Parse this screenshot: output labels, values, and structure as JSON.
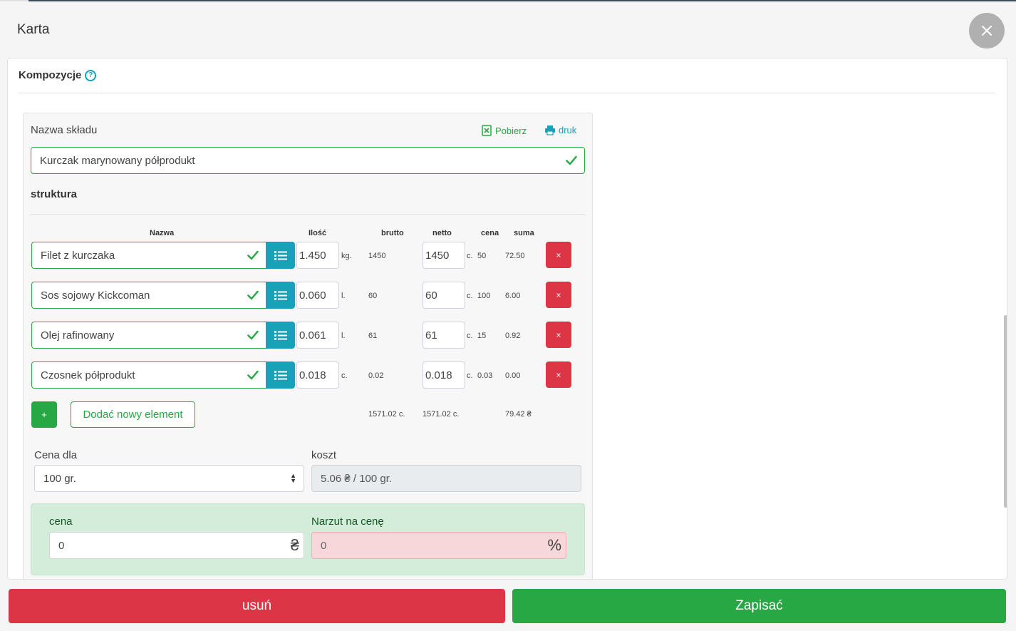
{
  "modal": {
    "title": "Karta",
    "close_icon": "close-icon"
  },
  "section": {
    "title": "Kompozycje",
    "help_icon": "?"
  },
  "recipe": {
    "name_label": "Nazwa składu",
    "name_value": "Kurczak marynowany półprodukt",
    "download_label": "Pobierz",
    "print_label": "druk"
  },
  "structure": {
    "title": "struktura",
    "columns": {
      "name": "Nazwa",
      "qty": "Ilość",
      "gross": "brutto",
      "net": "netto",
      "price": "cena",
      "sum": "suma"
    },
    "rows": [
      {
        "name": "Filet z kurczaka",
        "qty": "1.450",
        "qty_unit": "kg.",
        "gross": "1450",
        "net": "1450",
        "net_unit": "c.",
        "price": "50",
        "sum": "72.50",
        "delete": "×"
      },
      {
        "name": "Sos sojowy Kickcoman",
        "qty": "0.060",
        "qty_unit": "l.",
        "gross": "60",
        "net": "60",
        "net_unit": "c.",
        "price": "100",
        "sum": "6.00",
        "delete": "×"
      },
      {
        "name": "Olej rafinowany",
        "qty": "0.061",
        "qty_unit": "l.",
        "gross": "61",
        "net": "61",
        "net_unit": "c.",
        "price": "15",
        "sum": "0.92",
        "delete": "×"
      },
      {
        "name": "Czosnek półprodukt",
        "qty": "0.018",
        "qty_unit": "c.",
        "gross": "0.02",
        "net": "0.018",
        "net_unit": "c.",
        "price": "0.03",
        "sum": "0.00",
        "delete": "×"
      }
    ],
    "plus_label": "+",
    "add_label": "Dodać nowy element",
    "total_gross": "1571.02 c.",
    "total_net": "1571.02 c.",
    "total_sum": "79.42 ₴"
  },
  "pricing": {
    "price_for_label": "Cena dla",
    "price_for_value": "100 gr.",
    "cost_label": "koszt",
    "cost_value": "5.06 ₴ / 100 gr.",
    "price_label": "cena",
    "price_value": "0",
    "currency_symbol": "₴",
    "markup_label": "Narzut na cenę",
    "markup_value": "0",
    "percent_symbol": "%"
  },
  "footer": {
    "delete_label": "usuń",
    "save_label": "Zapisać"
  },
  "colors": {
    "success": "#28a745",
    "danger": "#dc3545",
    "info": "#17a2b8"
  }
}
